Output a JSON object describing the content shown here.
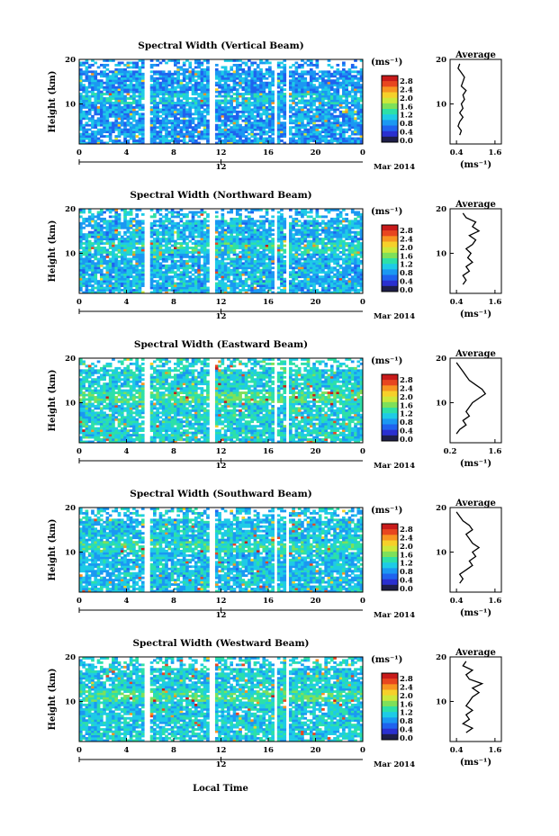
{
  "page": {
    "xlabel": "Local Time",
    "date_label": "Mar 2014",
    "date_tick": "12",
    "colors": [
      "#1e1e4a",
      "#2a2fd0",
      "#1f63ef",
      "#1b98f2",
      "#1ecbe6",
      "#2de0a8",
      "#7ee05a",
      "#cde83a",
      "#f6d02a",
      "#f79521",
      "#e8461f",
      "#c81a1a"
    ]
  },
  "chart_data": [
    {
      "type": "heatmap",
      "title": "Spectral Width (Vertical Beam)",
      "ylabel": "Height (km)",
      "x_ticks": [
        "0",
        "4",
        "8",
        "12",
        "16",
        "20",
        "0"
      ],
      "y_ticks": [
        "20",
        "10"
      ],
      "xlim": [
        0,
        24
      ],
      "ylim": [
        1,
        20
      ],
      "colorbar": {
        "unit": "(ms⁻¹)",
        "ticks": [
          "2.8",
          "2.4",
          "2.0",
          "1.6",
          "1.2",
          "0.8",
          "0.4",
          "0.0"
        ]
      },
      "gaps": [
        [
          5.6,
          5.9
        ],
        [
          7.4,
          7.6
        ],
        [
          11.1,
          11.4
        ],
        [
          16.6,
          16.8
        ],
        [
          17.5,
          17.7
        ]
      ],
      "mean_level": 0.55,
      "profile": {
        "title": "Average",
        "xlabel": "(ms⁻¹)",
        "xticks": [
          "0.4",
          "1.6"
        ],
        "xlim": [
          0.2,
          1.8
        ],
        "yticks": [
          "20",
          "10"
        ],
        "points": [
          [
            0.5,
            3
          ],
          [
            0.55,
            4
          ],
          [
            0.45,
            5
          ],
          [
            0.5,
            6
          ],
          [
            0.6,
            7
          ],
          [
            0.5,
            8
          ],
          [
            0.6,
            9
          ],
          [
            0.55,
            10
          ],
          [
            0.65,
            11
          ],
          [
            0.6,
            12
          ],
          [
            0.7,
            13
          ],
          [
            0.55,
            14
          ],
          [
            0.6,
            15
          ],
          [
            0.65,
            16
          ],
          [
            0.55,
            17
          ],
          [
            0.45,
            18
          ],
          [
            0.5,
            19
          ]
        ]
      }
    },
    {
      "type": "heatmap",
      "title": "Spectral Width (Northward Beam)",
      "ylabel": "Height (km)",
      "x_ticks": [
        "0",
        "4",
        "8",
        "12",
        "16",
        "20",
        "0"
      ],
      "y_ticks": [
        "20",
        "10"
      ],
      "xlim": [
        0,
        24
      ],
      "ylim": [
        1,
        20
      ],
      "colorbar": {
        "unit": "(ms⁻¹)",
        "ticks": [
          "2.8",
          "2.4",
          "2.0",
          "1.6",
          "1.2",
          "0.8",
          "0.4",
          "0.0"
        ]
      },
      "gaps": [
        [
          5.6,
          5.9
        ],
        [
          7.4,
          7.6
        ],
        [
          11.1,
          11.4
        ],
        [
          16.6,
          16.8
        ],
        [
          17.5,
          17.7
        ]
      ],
      "mean_level": 0.7,
      "profile": {
        "title": "Average",
        "xlabel": "(ms⁻¹)",
        "xticks": [
          "0.4",
          "1.6"
        ],
        "xlim": [
          0.2,
          1.8
        ],
        "yticks": [
          "20",
          "10"
        ],
        "points": [
          [
            0.6,
            3
          ],
          [
            0.7,
            4
          ],
          [
            0.6,
            5
          ],
          [
            0.8,
            6
          ],
          [
            0.7,
            7
          ],
          [
            0.9,
            8
          ],
          [
            0.75,
            9
          ],
          [
            0.85,
            10
          ],
          [
            0.7,
            11
          ],
          [
            0.9,
            12
          ],
          [
            1.0,
            13
          ],
          [
            0.8,
            14
          ],
          [
            1.1,
            15
          ],
          [
            0.9,
            16
          ],
          [
            1.0,
            17
          ],
          [
            0.7,
            18
          ],
          [
            0.6,
            19
          ]
        ]
      }
    },
    {
      "type": "heatmap",
      "title": "Spectral Width (Eastward Beam)",
      "ylabel": "Height (km)",
      "x_ticks": [
        "0",
        "4",
        "8",
        "12",
        "16",
        "20",
        "0"
      ],
      "y_ticks": [
        "20",
        "10"
      ],
      "xlim": [
        0,
        24
      ],
      "ylim": [
        1,
        20
      ],
      "colorbar": {
        "unit": "(ms⁻¹)",
        "ticks": [
          "2.8",
          "2.4",
          "2.0",
          "1.6",
          "1.2",
          "0.8",
          "0.4",
          "0.0"
        ]
      },
      "gaps": [
        [
          5.6,
          5.9
        ],
        [
          7.4,
          7.6
        ],
        [
          11.1,
          11.4
        ],
        [
          16.6,
          16.8
        ],
        [
          17.5,
          17.7
        ]
      ],
      "mean_level": 0.9,
      "profile": {
        "title": "Average",
        "xlabel": "(ms⁻¹)",
        "xticks": [
          "0.2",
          "1.6"
        ],
        "xlim": [
          0.2,
          1.8
        ],
        "yticks": [
          "20",
          "10"
        ],
        "points": [
          [
            0.4,
            3
          ],
          [
            0.5,
            4
          ],
          [
            0.7,
            5
          ],
          [
            0.6,
            6
          ],
          [
            0.8,
            7
          ],
          [
            0.7,
            8
          ],
          [
            0.8,
            9
          ],
          [
            0.9,
            10
          ],
          [
            1.1,
            11
          ],
          [
            1.3,
            12
          ],
          [
            1.2,
            13
          ],
          [
            1.0,
            14
          ],
          [
            0.8,
            15
          ],
          [
            0.7,
            16
          ],
          [
            0.6,
            17
          ],
          [
            0.5,
            18
          ],
          [
            0.4,
            19
          ]
        ]
      }
    },
    {
      "type": "heatmap",
      "title": "Spectral Width (Southward Beam)",
      "ylabel": "Height (km)",
      "x_ticks": [
        "0",
        "4",
        "8",
        "12",
        "16",
        "20",
        "0"
      ],
      "y_ticks": [
        "20",
        "10"
      ],
      "xlim": [
        0,
        24
      ],
      "ylim": [
        1,
        20
      ],
      "colorbar": {
        "unit": "(ms⁻¹)",
        "ticks": [
          "2.8",
          "2.4",
          "2.0",
          "1.6",
          "1.2",
          "0.8",
          "0.4",
          "0.0"
        ]
      },
      "gaps": [
        [
          5.6,
          5.9
        ],
        [
          7.4,
          7.6
        ],
        [
          11.1,
          11.4
        ],
        [
          16.6,
          16.8
        ],
        [
          17.5,
          17.7
        ]
      ],
      "mean_level": 0.75,
      "profile": {
        "title": "Average",
        "xlabel": "(ms⁻¹)",
        "xticks": [
          "0.4",
          "1.6"
        ],
        "xlim": [
          0.2,
          1.8
        ],
        "yticks": [
          "20",
          "10"
        ],
        "points": [
          [
            0.5,
            3
          ],
          [
            0.6,
            4
          ],
          [
            0.5,
            5
          ],
          [
            0.7,
            6
          ],
          [
            0.9,
            7
          ],
          [
            0.8,
            8
          ],
          [
            1.0,
            9
          ],
          [
            0.9,
            10
          ],
          [
            1.1,
            11
          ],
          [
            0.9,
            12
          ],
          [
            0.8,
            13
          ],
          [
            0.7,
            14
          ],
          [
            0.9,
            15
          ],
          [
            0.8,
            16
          ],
          [
            0.6,
            17
          ],
          [
            0.5,
            18
          ],
          [
            0.4,
            19
          ]
        ]
      }
    },
    {
      "type": "heatmap",
      "title": "Spectral Width (Westward Beam)",
      "ylabel": "Height (km)",
      "x_ticks": [
        "0",
        "4",
        "8",
        "12",
        "16",
        "20",
        "0"
      ],
      "y_ticks": [
        "20",
        "10"
      ],
      "xlim": [
        0,
        24
      ],
      "ylim": [
        1,
        20
      ],
      "colorbar": {
        "unit": "(ms⁻¹)",
        "ticks": [
          "2.8",
          "2.4",
          "2.0",
          "1.6",
          "1.2",
          "0.8",
          "0.4",
          "0.0"
        ]
      },
      "gaps": [
        [
          5.6,
          5.9
        ],
        [
          7.4,
          7.6
        ],
        [
          11.1,
          11.4
        ],
        [
          16.6,
          16.8
        ],
        [
          17.5,
          17.7
        ]
      ],
      "mean_level": 0.85,
      "profile": {
        "title": "Average",
        "xlabel": "(ms⁻¹)",
        "xticks": [
          "0.4",
          "1.6"
        ],
        "xlim": [
          0.2,
          1.8
        ],
        "yticks": [
          "20",
          "10"
        ],
        "points": [
          [
            0.7,
            3
          ],
          [
            0.9,
            4
          ],
          [
            0.6,
            5
          ],
          [
            0.8,
            6
          ],
          [
            0.7,
            7
          ],
          [
            0.9,
            8
          ],
          [
            0.7,
            9
          ],
          [
            0.8,
            10
          ],
          [
            0.9,
            11
          ],
          [
            1.1,
            12
          ],
          [
            0.9,
            13
          ],
          [
            1.2,
            14
          ],
          [
            0.8,
            15
          ],
          [
            0.7,
            16
          ],
          [
            0.9,
            17
          ],
          [
            0.6,
            18
          ],
          [
            0.7,
            19
          ]
        ]
      }
    }
  ]
}
